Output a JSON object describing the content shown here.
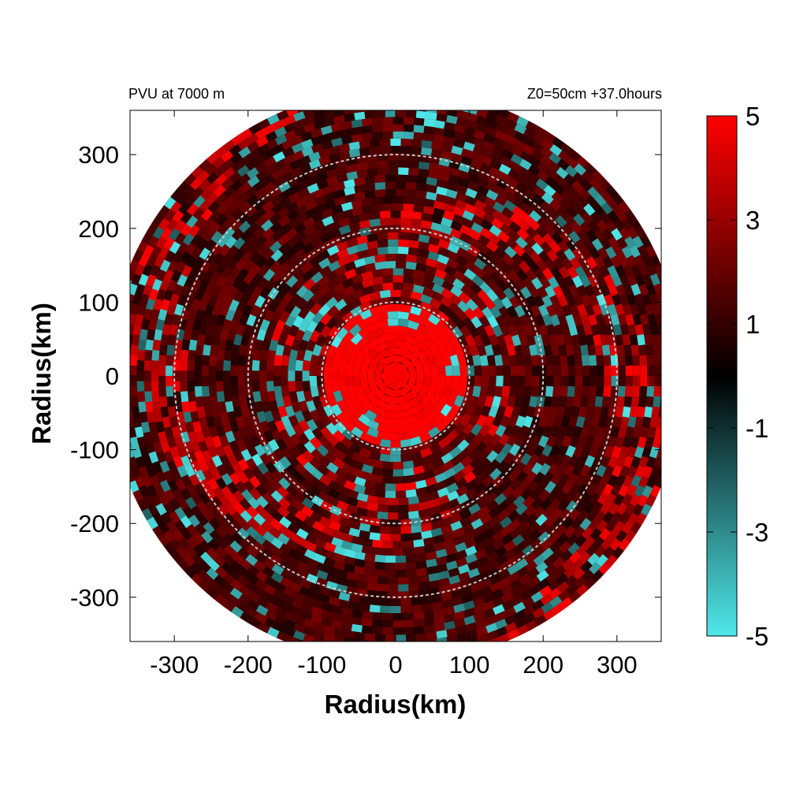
{
  "title_left": "PVU at  7000 m",
  "title_right": "Z0=50cm  +37.0hours",
  "chart_data": {
    "type": "heatmap",
    "xlabel": "Radius(km)",
    "ylabel": "Radius(km)",
    "xlim": [
      -360,
      360
    ],
    "ylim": [
      -360,
      360
    ],
    "xticks": [
      -300,
      -200,
      -100,
      0,
      100,
      200,
      300
    ],
    "yticks": [
      -300,
      -200,
      -100,
      0,
      100,
      200,
      300
    ],
    "domain_radius_km": 390,
    "reference_circles_km": [
      100,
      200,
      300
    ],
    "colorbar": {
      "range": [
        -5,
        5
      ],
      "ticks": [
        5,
        3,
        1,
        -1,
        -3,
        -5
      ],
      "colors": {
        "low": "#4fe8ea",
        "mid": "#000000",
        "high": "#ff0000"
      }
    },
    "field_description": "Potential vorticity: strong positive core (~5 PVU) within 100 km, mixed positive and negative bands outward"
  }
}
